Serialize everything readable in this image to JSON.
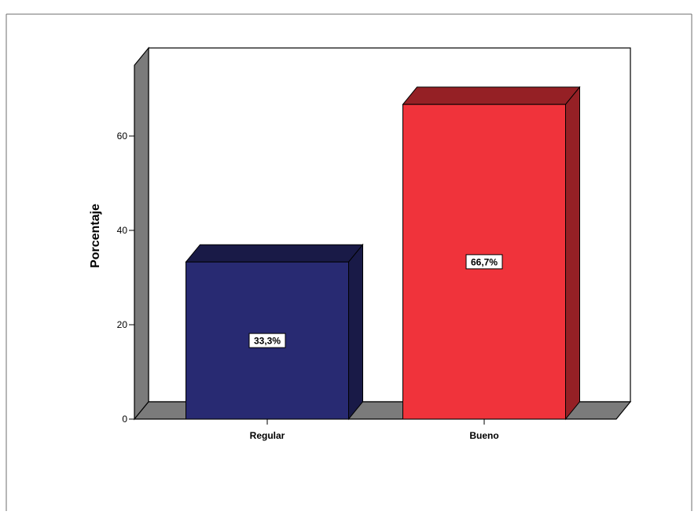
{
  "chart_data": {
    "type": "bar",
    "title": "",
    "xlabel": "",
    "ylabel": "Porcentaje",
    "categories": [
      "Regular",
      "Bueno"
    ],
    "values": [
      33.3,
      66.7
    ],
    "data_labels": [
      "33,3%",
      "66,7%"
    ],
    "ylim": [
      0,
      75
    ],
    "yticks": [
      0,
      20,
      40,
      60
    ],
    "grid": false,
    "style": "3d",
    "colors": {
      "bars": [
        "#282a72",
        "#f0333b"
      ],
      "floor": "#7b7b7b"
    }
  }
}
